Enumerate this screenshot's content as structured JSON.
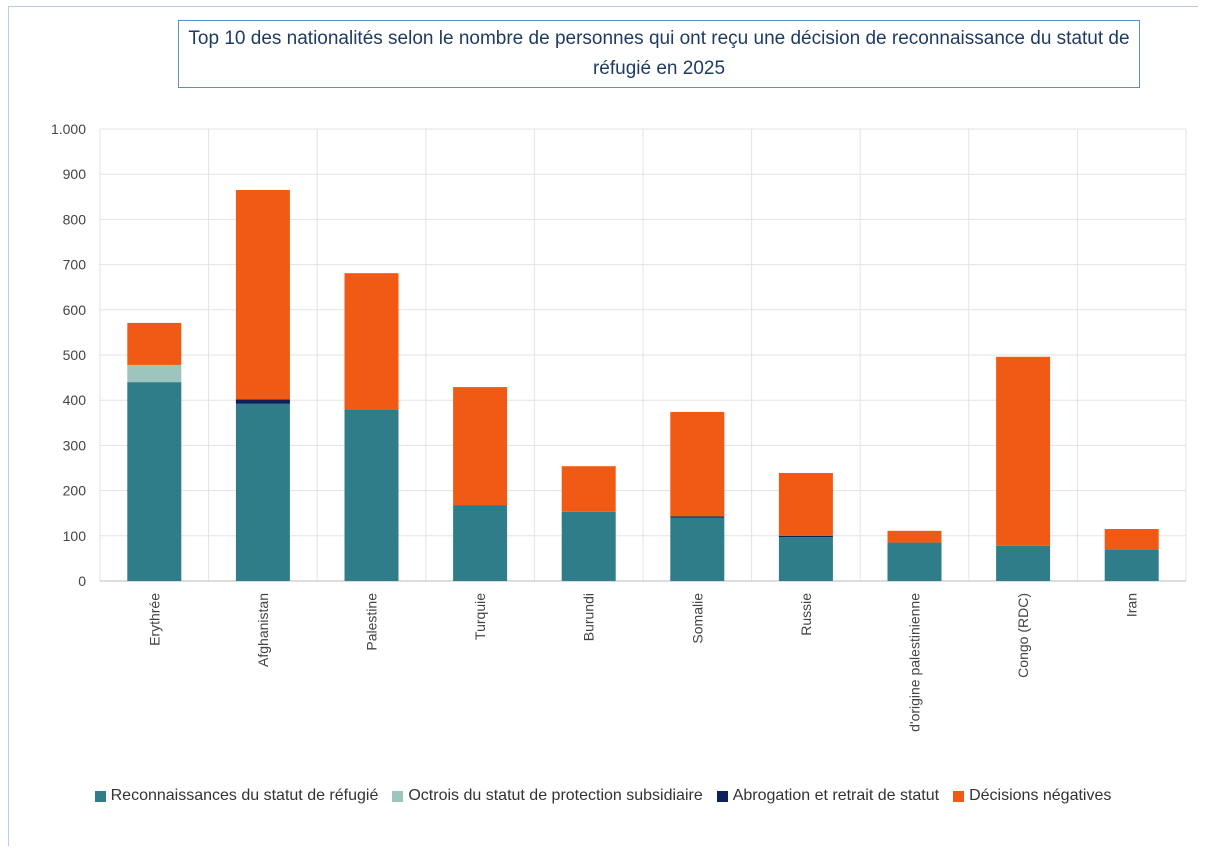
{
  "chart_data": {
    "type": "stacked-bar",
    "title": "Top 10 des nationalités selon le nombre de personnes qui ont reçu une décision de reconnaissance du statut de réfugié en 2025",
    "categories": [
      "Erythrée",
      "Afghanistan",
      "Palestine",
      "Turquie",
      "Burundi",
      "Somalie",
      "Russie",
      "d'origine palestinienne",
      "Congo (RDC)",
      "Iran"
    ],
    "series": [
      {
        "name": "Reconnaissances du statut de réfugié",
        "color": "#2e7d89",
        "values": [
          440,
          392,
          380,
          168,
          153,
          140,
          97,
          85,
          78,
          70
        ]
      },
      {
        "name": "Octrois du statut de protection subsidiaire",
        "color": "#9dc4bd",
        "values": [
          38,
          0,
          0,
          0,
          0,
          0,
          0,
          0,
          0,
          0
        ]
      },
      {
        "name": "Abrogation et retrait de statut",
        "color": "#0f1f5c",
        "values": [
          0,
          10,
          0,
          0,
          0,
          3,
          3,
          0,
          0,
          0
        ]
      },
      {
        "name": "Décisions négatives",
        "color": "#f05a14",
        "values": [
          93,
          463,
          301,
          261,
          101,
          231,
          139,
          26,
          418,
          45
        ]
      }
    ],
    "ylim": [
      0,
      1000
    ],
    "yticks": [
      0,
      100,
      200,
      300,
      400,
      500,
      600,
      700,
      800,
      900,
      {
        "value": 1000,
        "label": "1.000"
      }
    ],
    "grid": true,
    "legend": "bottom"
  }
}
